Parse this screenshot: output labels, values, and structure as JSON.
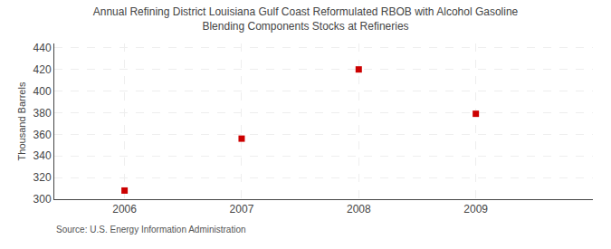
{
  "chart_data": {
    "type": "scatter",
    "title": "Annual Refining District Louisiana Gulf Coast Reformulated RBOB with Alcohol Gasoline\nBlending Components Stocks at Refineries",
    "ylabel": "Thousand Barrels",
    "annotations": [
      "Source: U.S. Energy Information Administration"
    ],
    "x": [
      2006,
      2007,
      2008,
      2009
    ],
    "values": [
      308,
      356,
      420,
      379
    ],
    "color": "#cc0000",
    "marker": "square",
    "xlim": [
      2005.4,
      2010.0
    ],
    "xticks": [
      2006,
      2007,
      2008,
      2009
    ],
    "ylim": [
      300,
      444
    ],
    "yticks": [
      300,
      320,
      340,
      360,
      380,
      400,
      420,
      440
    ],
    "grid": true
  }
}
